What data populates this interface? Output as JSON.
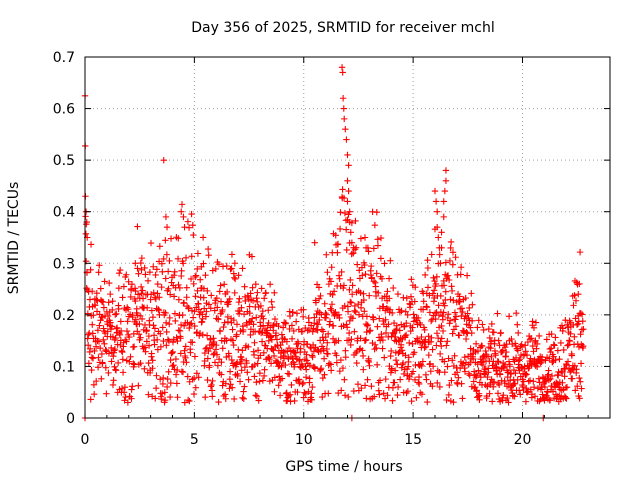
{
  "chart_data": {
    "type": "scatter",
    "title": "Day 356 of 2025, SRMTID for receiver mchl",
    "xlabel": "GPS time / hours",
    "ylabel": "SRMTID / TECUs",
    "xlim": [
      0,
      24
    ],
    "ylim": [
      0,
      0.7
    ],
    "xticks": [
      0,
      5,
      10,
      15,
      20
    ],
    "xtick_labels": [
      "0",
      "5",
      "10",
      "15",
      "20"
    ],
    "yticks": [
      0,
      0.1,
      0.2,
      0.3,
      0.4,
      0.5,
      0.6,
      0.7
    ],
    "ytick_labels": [
      "0",
      "0.1",
      "0.2",
      "0.3",
      "0.4",
      "0.5",
      "0.6",
      "0.7"
    ],
    "grid": true,
    "marker": "+",
    "color": "#ff0000",
    "trend": [
      [
        0.0,
        0.3
      ],
      [
        0.1,
        0.2
      ],
      [
        0.3,
        0.19
      ],
      [
        0.8,
        0.16
      ],
      [
        1.3,
        0.13
      ],
      [
        1.8,
        0.15
      ],
      [
        2.3,
        0.19
      ],
      [
        2.7,
        0.18
      ],
      [
        3.2,
        0.17
      ],
      [
        3.7,
        0.18
      ],
      [
        4.2,
        0.2
      ],
      [
        4.7,
        0.21
      ],
      [
        5.2,
        0.19
      ],
      [
        5.7,
        0.16
      ],
      [
        6.2,
        0.17
      ],
      [
        6.7,
        0.19
      ],
      [
        7.2,
        0.16
      ],
      [
        7.7,
        0.16
      ],
      [
        8.2,
        0.15
      ],
      [
        8.7,
        0.13
      ],
      [
        9.2,
        0.12
      ],
      [
        9.7,
        0.12
      ],
      [
        10.2,
        0.13
      ],
      [
        10.7,
        0.15
      ],
      [
        11.2,
        0.17
      ],
      [
        11.6,
        0.24
      ],
      [
        12.0,
        0.24
      ],
      [
        12.5,
        0.22
      ],
      [
        13.0,
        0.21
      ],
      [
        13.5,
        0.2
      ],
      [
        14.0,
        0.17
      ],
      [
        14.5,
        0.15
      ],
      [
        15.0,
        0.15
      ],
      [
        15.5,
        0.16
      ],
      [
        16.0,
        0.19
      ],
      [
        16.5,
        0.21
      ],
      [
        17.0,
        0.17
      ],
      [
        17.5,
        0.15
      ],
      [
        18.0,
        0.11
      ],
      [
        18.5,
        0.1
      ],
      [
        19.0,
        0.1
      ],
      [
        19.5,
        0.1
      ],
      [
        20.0,
        0.1
      ],
      [
        20.5,
        0.1
      ],
      [
        21.0,
        0.09
      ],
      [
        21.5,
        0.09
      ],
      [
        22.0,
        0.12
      ],
      [
        22.5,
        0.17
      ],
      [
        22.8,
        0.16
      ]
    ],
    "spikes": [
      [
        0.02,
        0.43
      ],
      [
        0.05,
        0.4
      ],
      [
        0.08,
        0.38
      ],
      [
        0.1,
        0.35
      ],
      [
        3.6,
        0.5
      ],
      [
        3.7,
        0.39
      ],
      [
        3.75,
        0.37
      ],
      [
        4.4,
        0.4
      ],
      [
        4.5,
        0.39
      ],
      [
        4.55,
        0.37
      ],
      [
        10.5,
        0.34
      ],
      [
        11.75,
        0.68
      ],
      [
        11.78,
        0.67
      ],
      [
        11.8,
        0.62
      ],
      [
        11.83,
        0.6
      ],
      [
        11.85,
        0.58
      ],
      [
        11.9,
        0.56
      ],
      [
        11.95,
        0.54
      ],
      [
        12.0,
        0.51
      ],
      [
        12.05,
        0.49
      ],
      [
        12.0,
        0.46
      ],
      [
        12.05,
        0.44
      ],
      [
        12.0,
        0.42
      ],
      [
        12.1,
        0.4
      ],
      [
        12.1,
        0.38
      ],
      [
        12.15,
        0.36
      ],
      [
        12.2,
        0.34
      ],
      [
        16.0,
        0.44
      ],
      [
        16.05,
        0.42
      ],
      [
        16.1,
        0.4
      ],
      [
        16.1,
        0.37
      ],
      [
        16.15,
        0.35
      ],
      [
        16.2,
        0.33
      ],
      [
        16.5,
        0.48
      ],
      [
        16.5,
        0.46
      ],
      [
        16.45,
        0.44
      ],
      [
        16.4,
        0.42
      ],
      [
        16.4,
        0.39
      ],
      [
        16.3,
        0.36
      ],
      [
        16.3,
        0.33
      ],
      [
        16.25,
        0.3
      ],
      [
        12.8,
        0.35
      ],
      [
        12.85,
        0.33
      ],
      [
        22.6,
        0.26
      ],
      [
        22.55,
        0.24
      ],
      [
        2.3,
        0.3
      ],
      [
        2.4,
        0.29
      ],
      [
        2.6,
        0.31
      ],
      [
        6.7,
        0.29
      ],
      [
        6.8,
        0.28
      ],
      [
        7.2,
        0.29
      ]
    ],
    "zeros": [
      [
        0.0,
        0.0
      ],
      [
        12.2,
        0.0
      ],
      [
        20.95,
        0.0
      ]
    ]
  }
}
